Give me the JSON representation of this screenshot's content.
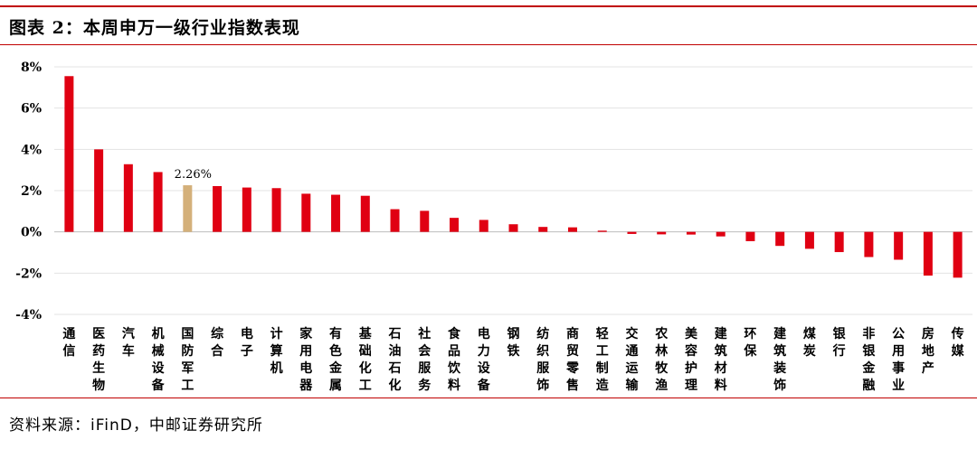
{
  "title": "图表 2：本周申万一级行业指数表现",
  "source": "资料来源：iFinD，中邮证券研究所",
  "colors": {
    "bar": "#e00012",
    "highlight": "#d4b07a",
    "grid": "#e3e3e3",
    "rule": "#c00000"
  },
  "chart_data": {
    "type": "bar",
    "title": "本周申万一级行业指数表现",
    "xlabel": "",
    "ylabel": "",
    "ylim": [
      -4,
      8
    ],
    "yticks": [
      8,
      6,
      4,
      2,
      0,
      -2,
      -4
    ],
    "ytick_labels": [
      "8%",
      "6%",
      "4%",
      "2%",
      "0%",
      "-2%",
      "-4%"
    ],
    "grid": true,
    "legend": "none",
    "categories": [
      "通信",
      "医药生物",
      "汽车",
      "机械设备",
      "国防军工",
      "综合",
      "电子",
      "计算机",
      "家用电器",
      "有色金属",
      "基础化工",
      "石油石化",
      "社会服务",
      "食品饮料",
      "电力设备",
      "钢铁",
      "纺织服饰",
      "商贸零售",
      "轻工制造",
      "交通运输",
      "农林牧渔",
      "美容护理",
      "建筑材料",
      "环保",
      "建筑装饰",
      "煤炭",
      "银行",
      "非银金融",
      "公用事业",
      "房地产",
      "传媒"
    ],
    "values": [
      7.55,
      4.0,
      3.28,
      2.9,
      2.26,
      2.22,
      2.15,
      2.12,
      1.85,
      1.8,
      1.75,
      1.1,
      1.02,
      0.68,
      0.58,
      0.37,
      0.24,
      0.22,
      0.06,
      -0.1,
      -0.12,
      -0.13,
      -0.22,
      -0.45,
      -0.68,
      -0.82,
      -0.98,
      -1.22,
      -1.35,
      -2.12,
      -2.22
    ],
    "highlight_index": 4,
    "data_labels": [
      {
        "index": 4,
        "text": "2.26%"
      }
    ]
  }
}
